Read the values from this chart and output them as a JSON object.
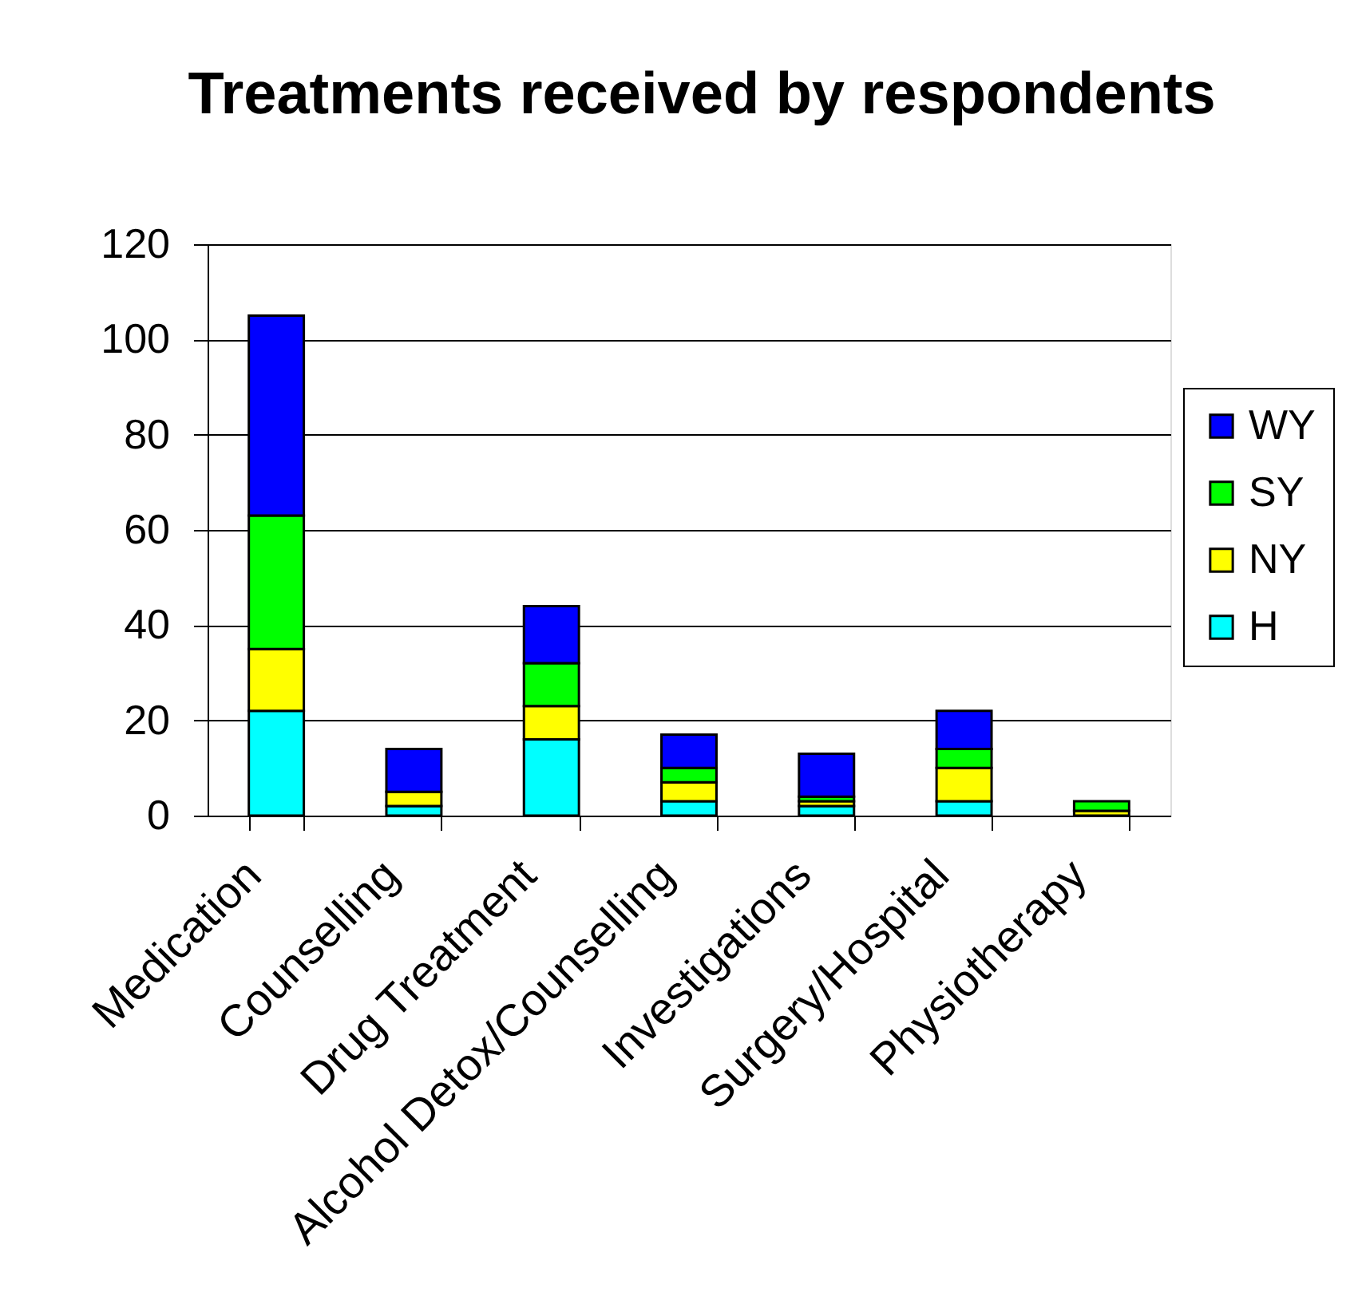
{
  "chart_data": {
    "type": "bar",
    "title": "Treatments received by respondents",
    "categories": [
      "Medication",
      "Counselling",
      "Drug Treatment",
      "Alcohol Detox/Counselling",
      "Investigations",
      "Surgery/Hospital",
      "Physiotherapy"
    ],
    "stacked": true,
    "series": [
      {
        "name": "H",
        "color": "#00ffff",
        "values": [
          22,
          2,
          16,
          3,
          2,
          3,
          0
        ]
      },
      {
        "name": "NY",
        "color": "#ffff00",
        "values": [
          13,
          3,
          7,
          4,
          1,
          7,
          1
        ]
      },
      {
        "name": "SY",
        "color": "#00ff00",
        "values": [
          28,
          0,
          9,
          3,
          1,
          4,
          2
        ]
      },
      {
        "name": "WY",
        "color": "#0000ff",
        "values": [
          42,
          9,
          12,
          7,
          9,
          8,
          0
        ]
      }
    ],
    "ylim": [
      0,
      120
    ],
    "yticks": [
      0,
      20,
      40,
      60,
      80,
      100,
      120
    ],
    "grid": "y",
    "legend": "right"
  }
}
